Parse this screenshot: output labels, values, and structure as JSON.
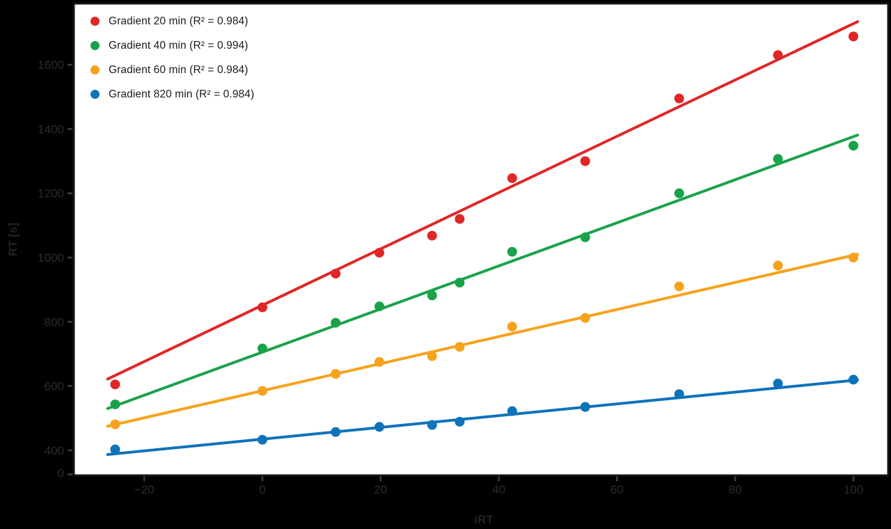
{
  "style": {
    "background": "#000000",
    "plot_background": "#ffffff",
    "spine_color": "#15151a",
    "tick_color": "#3d3d44",
    "tick_label_color": "#2b2b31",
    "axis_label_color": "#222228",
    "legend_text_color": "#1a1a1e"
  },
  "chart_data": {
    "type": "scatter",
    "title": "",
    "xlabel": "iRT",
    "ylabel": "RT [s]",
    "grid": false,
    "legend_position": "upper-left",
    "x_axis_range": [
      -31.8,
      105.8
    ],
    "y_axis_range": [
      322,
      1786
    ],
    "x_ticks": {
      "values": [
        -20,
        0,
        20,
        40,
        60,
        80,
        100
      ],
      "labels": [
        "−20",
        "0",
        "20",
        "40",
        "60",
        "80",
        "100"
      ]
    },
    "y_ticks": {
      "values": [
        0,
        400,
        600,
        800,
        1000,
        1200,
        1400,
        1600
      ],
      "labels": [
        "0",
        "400",
        "600",
        "800",
        "1000",
        "1200",
        "1400",
        "1600"
      ],
      "zero_tick_at_axis_bottom": true
    },
    "x": [
      -24.92,
      0,
      12.39,
      19.79,
      28.71,
      33.38,
      42.26,
      54.62,
      70.52,
      87.23,
      100
    ],
    "series": [
      {
        "name": "Gradient 20 min",
        "r2": "0.984",
        "legend_label": "Gradient 20 min (R² = 0.984)",
        "color": "#df2727",
        "values": [
          605,
          845,
          950,
          1015,
          1068,
          1120,
          1247,
          1300,
          1495,
          1630,
          1688
        ],
        "trend_line": {
          "x": [
            -26.2,
            100.7
          ],
          "y": [
            622,
            1734
          ]
        }
      },
      {
        "name": "Gradient 40 min",
        "r2": "0.994",
        "legend_label": "Gradient 40 min (R² = 0.994)",
        "color": "#1aa24a",
        "values": [
          543,
          717,
          797,
          848,
          882,
          922,
          1018,
          1063,
          1200,
          1307,
          1348
        ],
        "trend_line": {
          "x": [
            -26.2,
            100.7
          ],
          "y": [
            530,
            1381
          ]
        }
      },
      {
        "name": "Gradient 60 min",
        "r2": "0.984",
        "legend_label": "Gradient 60 min (R² = 0.984)",
        "color": "#f7a21c",
        "values": [
          481,
          585,
          638,
          675,
          693,
          722,
          785,
          812,
          910,
          975,
          1000
        ],
        "trend_line": {
          "x": [
            -26.2,
            100.7
          ],
          "y": [
            475,
            1010
          ]
        }
      },
      {
        "name": "Gradient 820 min",
        "r2": "0.984",
        "legend_label": "Gradient 820 min (R² = 0.984)",
        "color": "#0e73b9",
        "values": [
          403,
          433,
          457,
          473,
          479,
          489,
          522,
          535,
          575,
          608,
          620
        ],
        "trend_line": {
          "x": [
            -26.2,
            100.7
          ],
          "y": [
            387,
            619
          ]
        }
      }
    ]
  }
}
